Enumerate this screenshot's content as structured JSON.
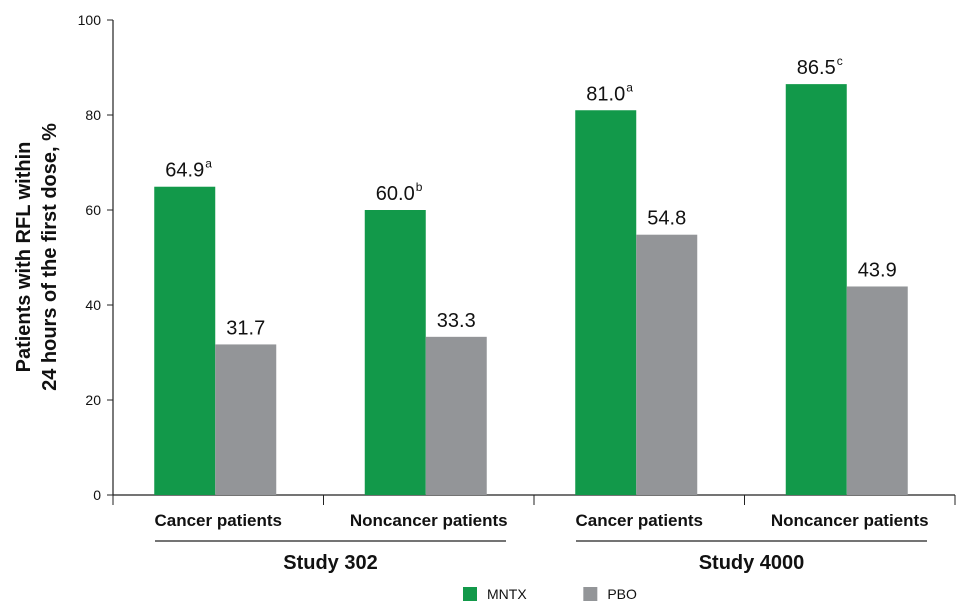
{
  "chart_data": {
    "type": "bar",
    "ylabel": [
      "Patients with RFL within",
      "24 hours of the first dose, %"
    ],
    "categories": [
      "Cancer patients",
      "Noncancer patients",
      "Cancer patients",
      "Noncancer patients"
    ],
    "groups": [
      "Study 302",
      "Study 4000"
    ],
    "series": [
      {
        "name": "MNTX",
        "color": "#12994a",
        "values": [
          64.9,
          60.0,
          81.0,
          86.5
        ],
        "value_labels": [
          "64.9",
          "60.0",
          "81.0",
          "86.5"
        ],
        "value_notes": [
          "a",
          "b",
          "a",
          "c"
        ]
      },
      {
        "name": "PBO",
        "color": "#939598",
        "values": [
          31.7,
          33.3,
          54.8,
          43.9
        ]
      }
    ],
    "ylim": [
      0,
      100
    ],
    "yticks": [
      0,
      20,
      40,
      60,
      80,
      100
    ]
  }
}
